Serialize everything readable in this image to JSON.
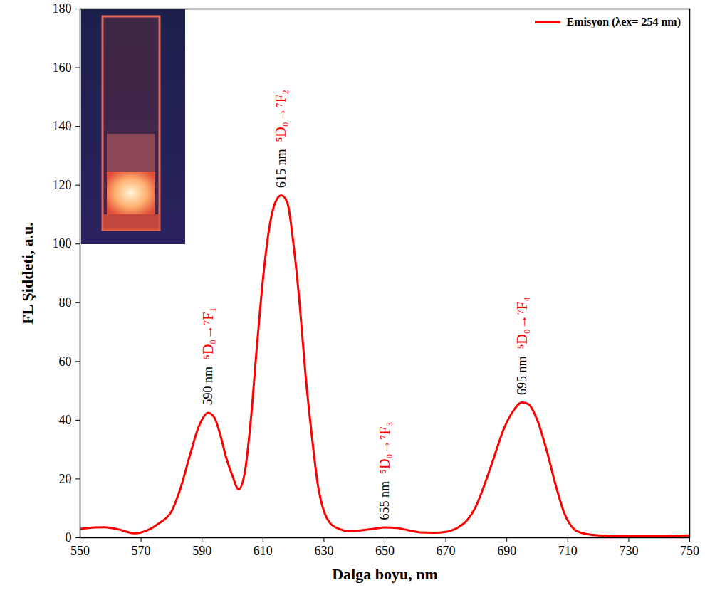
{
  "chart_data": {
    "type": "line",
    "x_label": "Dalga boyu, nm",
    "y_label": "FL Şiddeti, a.u.",
    "legend": "upper right",
    "grid": false,
    "xlim": [
      550,
      750
    ],
    "xticks": [
      550,
      570,
      590,
      610,
      630,
      650,
      670,
      690,
      710,
      730,
      750
    ],
    "ylim": [
      0,
      180
    ],
    "yticks": [
      0,
      20,
      40,
      60,
      80,
      100,
      120,
      140,
      160,
      180
    ],
    "x": [
      550,
      555,
      558,
      562,
      568,
      572,
      576,
      580,
      583,
      586,
      589,
      592,
      594,
      596,
      598,
      600,
      602,
      604,
      606,
      608,
      610,
      612,
      614,
      616,
      618,
      620,
      622,
      624,
      626,
      628,
      630,
      632,
      635,
      638,
      642,
      646,
      650,
      654,
      658,
      662,
      666,
      670,
      674,
      677,
      680,
      683,
      686,
      689,
      692,
      695,
      697,
      700,
      703,
      706,
      709,
      712,
      715,
      720,
      730,
      740,
      750
    ],
    "series": [
      {
        "name": "Emisyon (λex= 254 nm)",
        "color": "#ff0000",
        "values": [
          3,
          3.5,
          3.6,
          3,
          1.5,
          2.5,
          5,
          9,
          17,
          28,
          38,
          42.5,
          41,
          35,
          27,
          21,
          16.5,
          22,
          40,
          65,
          88,
          105,
          114,
          116.5,
          114,
          100,
          80,
          55,
          35,
          18,
          9,
          5,
          3,
          2.3,
          2.5,
          3,
          3.5,
          3.3,
          2.5,
          1.8,
          1.7,
          2,
          3.5,
          6,
          11,
          19,
          28,
          37,
          43,
          46,
          45.5,
          40,
          30,
          18,
          8,
          3,
          1.5,
          0.8,
          0.5,
          0.5,
          0.8
        ]
      }
    ],
    "annotations": [
      {
        "x": 592,
        "y": 42.5,
        "label": "590 nm",
        "transition": "⁵D₀→⁷F₁"
      },
      {
        "x": 616,
        "y": 116.5,
        "label": "615 nm",
        "transition": "⁵D₀→⁷F₂"
      },
      {
        "x": 650,
        "y": 3.5,
        "label": "655 nm",
        "transition": "⁵D₀→⁷F₃"
      },
      {
        "x": 695,
        "y": 46,
        "label": "695 nm",
        "transition": "⁵D₀→⁷F₄"
      }
    ]
  }
}
